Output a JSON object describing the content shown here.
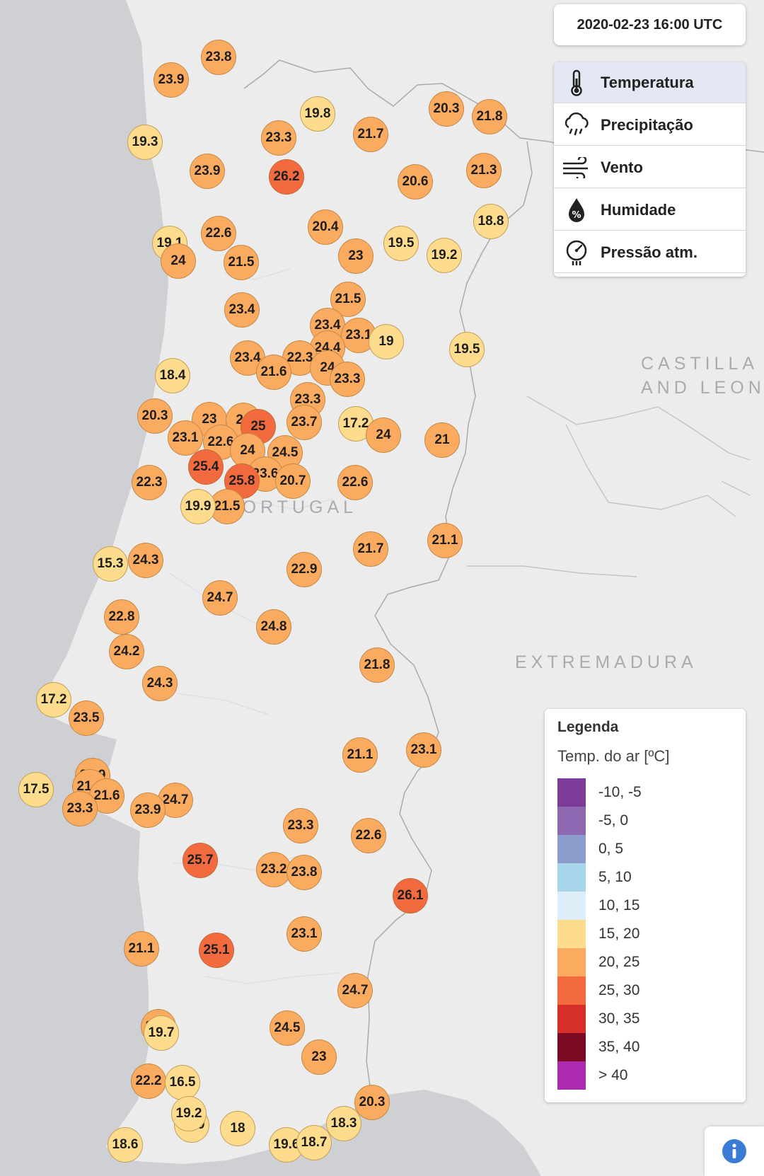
{
  "timestamp": "2020-02-23 16:00 UTC",
  "layers": [
    {
      "label": "Temperatura",
      "icon": "thermometer-icon",
      "active": true
    },
    {
      "label": "Precipitação",
      "icon": "rain-cloud-icon",
      "active": false
    },
    {
      "label": "Vento",
      "icon": "wind-icon",
      "active": false
    },
    {
      "label": "Humidade",
      "icon": "humidity-drop-icon",
      "active": false
    },
    {
      "label": "Pressão atm.",
      "icon": "barometer-icon",
      "active": false
    }
  ],
  "regions": {
    "portugal": "PORTUGAL",
    "castilla": "CASTILLA\nAND LEON",
    "extremadura": "EXTREMADURA"
  },
  "legend": {
    "title": "Legenda",
    "subtitle": "Temp. do ar [ºC]",
    "classes": [
      {
        "label": "-10, -5",
        "color": "#7c3a99"
      },
      {
        "label": "-5, 0",
        "color": "#8f68b2"
      },
      {
        "label": "0, 5",
        "color": "#8b9ccd"
      },
      {
        "label": "5, 10",
        "color": "#a9d5ea"
      },
      {
        "label": "10, 15",
        "color": "#dceff8"
      },
      {
        "label": "15, 20",
        "color": "#fddc8d"
      },
      {
        "label": "20, 25",
        "color": "#fbab60"
      },
      {
        "label": "25, 30",
        "color": "#f26a3e"
      },
      {
        "label": "30, 35",
        "color": "#d7302a"
      },
      {
        "label": "35, 40",
        "color": "#7b0a25"
      },
      {
        "label": "> 40",
        "color": "#ab2ab0"
      }
    ]
  },
  "stations": [
    {
      "value": "23.8"
    },
    {
      "value": "23.9"
    },
    {
      "value": "19.3"
    },
    {
      "value": "19.8"
    },
    {
      "value": "23.3"
    },
    {
      "value": "21.7"
    },
    {
      "value": "20.3"
    },
    {
      "value": "21.8"
    },
    {
      "value": "23.9"
    },
    {
      "value": "26.2"
    },
    {
      "value": "20.6"
    },
    {
      "value": "21.3"
    },
    {
      "value": "18.8"
    },
    {
      "value": "19.1"
    },
    {
      "value": "22.6"
    },
    {
      "value": "20.4"
    },
    {
      "value": "19.5"
    },
    {
      "value": "24"
    },
    {
      "value": "21.5"
    },
    {
      "value": "23"
    },
    {
      "value": "19.2"
    },
    {
      "value": "21.5"
    },
    {
      "value": "23.4"
    },
    {
      "value": "23.4"
    },
    {
      "value": "23.1"
    },
    {
      "value": "19"
    },
    {
      "value": "19.5"
    },
    {
      "value": "24.4"
    },
    {
      "value": "23.4"
    },
    {
      "value": "22.3"
    },
    {
      "value": "21.6"
    },
    {
      "value": "24"
    },
    {
      "value": "23.3"
    },
    {
      "value": "18.4"
    },
    {
      "value": "23.3"
    },
    {
      "value": "20.3"
    },
    {
      "value": "23"
    },
    {
      "value": "24"
    },
    {
      "value": "25"
    },
    {
      "value": "23.7"
    },
    {
      "value": "17.2"
    },
    {
      "value": "24"
    },
    {
      "value": "21"
    },
    {
      "value": "23.1"
    },
    {
      "value": "22.6"
    },
    {
      "value": "24"
    },
    {
      "value": "24.5"
    },
    {
      "value": "25.4"
    },
    {
      "value": "23.6"
    },
    {
      "value": "25.8"
    },
    {
      "value": "20.7"
    },
    {
      "value": "22.3"
    },
    {
      "value": "22.6"
    },
    {
      "value": "21.5"
    },
    {
      "value": "19.9"
    },
    {
      "value": "21.1"
    },
    {
      "value": "21.7"
    },
    {
      "value": "15.3"
    },
    {
      "value": "24.3"
    },
    {
      "value": "22.9"
    },
    {
      "value": "24.7"
    },
    {
      "value": "22.8"
    },
    {
      "value": "24.8"
    },
    {
      "value": "24.2"
    },
    {
      "value": "21.8"
    },
    {
      "value": "24.3"
    },
    {
      "value": "17.2"
    },
    {
      "value": "23.5"
    },
    {
      "value": "21.1"
    },
    {
      "value": "23.1"
    },
    {
      "value": "22.9"
    },
    {
      "value": "17.5"
    },
    {
      "value": "21.9"
    },
    {
      "value": "21.6"
    },
    {
      "value": "23.3"
    },
    {
      "value": "24.7"
    },
    {
      "value": "23.9"
    },
    {
      "value": "23.3"
    },
    {
      "value": "22.6"
    },
    {
      "value": "25.7"
    },
    {
      "value": "23.2"
    },
    {
      "value": "23.8"
    },
    {
      "value": "26.1"
    },
    {
      "value": "21.1"
    },
    {
      "value": "25.1"
    },
    {
      "value": "23.1"
    },
    {
      "value": "24.7"
    },
    {
      "value": "21.6"
    },
    {
      "value": "19.7"
    },
    {
      "value": "24.5"
    },
    {
      "value": "23"
    },
    {
      "value": "22.2"
    },
    {
      "value": "16.5"
    },
    {
      "value": "20.3"
    },
    {
      "value": "18.3"
    },
    {
      "value": "17.9"
    },
    {
      "value": "18"
    },
    {
      "value": "18.6"
    },
    {
      "value": "19.6"
    },
    {
      "value": "18.7"
    },
    {
      "value": "19.2"
    }
  ]
}
